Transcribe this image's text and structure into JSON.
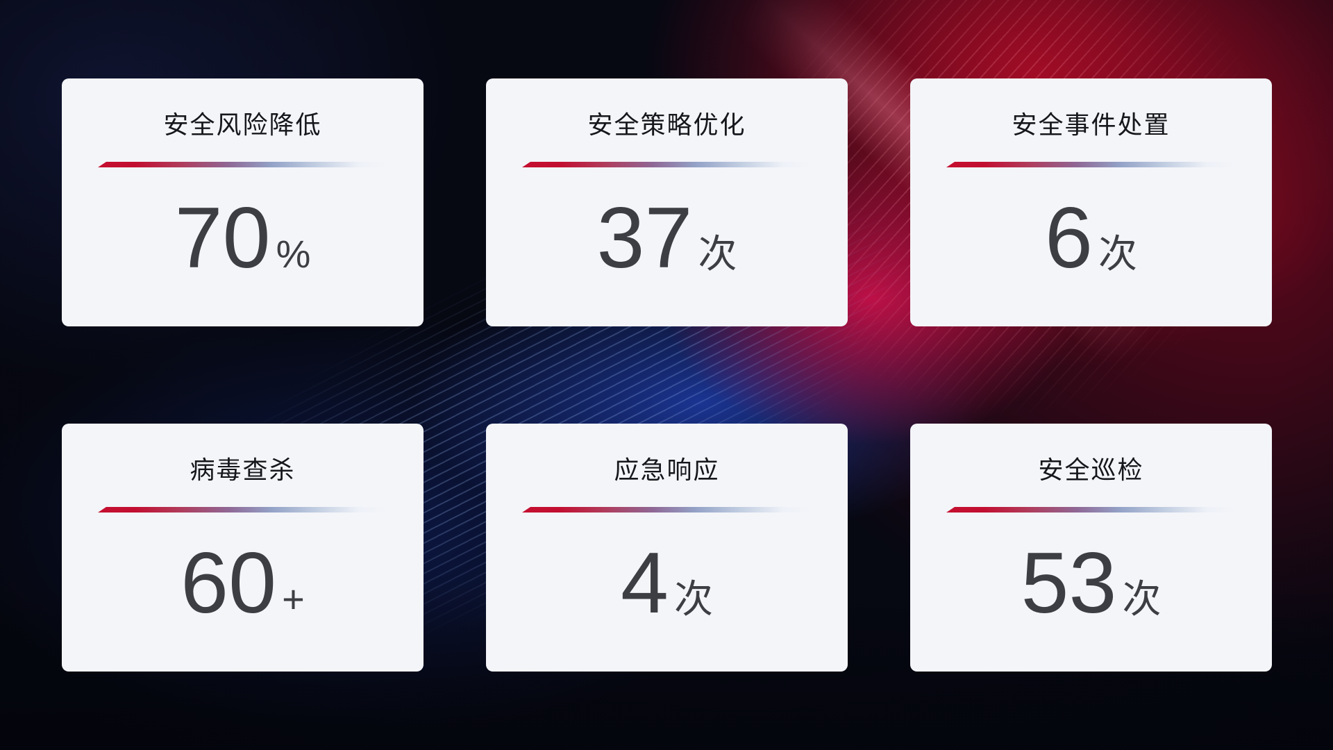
{
  "colors": {
    "background_base": "#060812",
    "glow_red": "#a80c26",
    "glow_magenta": "#c4114a",
    "glow_blue": "#1e3ca8",
    "card_background": "#f4f5f9",
    "title_text": "#15171c",
    "value_text": "#3d3e44",
    "divider_red": "#c40f30",
    "divider_blue_fade": "#c3cfe2"
  },
  "cards": [
    {
      "title": "安全风险降低",
      "value": "70",
      "unit": "%"
    },
    {
      "title": "安全策略优化",
      "value": "37",
      "unit": "次"
    },
    {
      "title": "安全事件处置",
      "value": "6",
      "unit": "次"
    },
    {
      "title": "病毒查杀",
      "value": "60",
      "unit": "+"
    },
    {
      "title": "应急响应",
      "value": "4",
      "unit": "次"
    },
    {
      "title": "安全巡检",
      "value": "53",
      "unit": "次"
    }
  ]
}
